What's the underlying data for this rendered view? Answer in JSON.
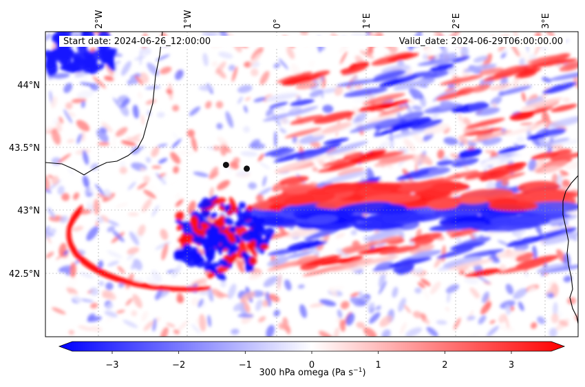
{
  "map": {
    "start_label": "Start date: 2024-06-26_12:00:00",
    "valid_label": "Valid_date: 2024-06-29T06:00:00.00",
    "lon_ticks": [
      "2°W",
      "1°W",
      "0°",
      "1°E",
      "2°E",
      "3°E"
    ],
    "lat_ticks": [
      "44°N",
      "43.5°N",
      "43°N",
      "42.5°N"
    ],
    "lon_range": [
      -2.6,
      3.3
    ],
    "lat_range": [
      42.0,
      44.45
    ],
    "points": [
      {
        "name": "city-marker-1",
        "lon": -0.6,
        "lat": 43.38
      },
      {
        "name": "city-marker-2",
        "lon": -0.37,
        "lat": 43.35
      }
    ]
  },
  "colorbar": {
    "label_main": "300 hPa omega (Pa s",
    "label_exp": "−1",
    "label_close": ")",
    "ticks": [
      "−3",
      "−2",
      "−1",
      "0",
      "1",
      "2",
      "3"
    ],
    "range": [
      -3.6,
      3.6
    ],
    "colors": {
      "negative": "#0000ff",
      "zero": "#ffffff",
      "positive": "#ff0000"
    }
  }
}
